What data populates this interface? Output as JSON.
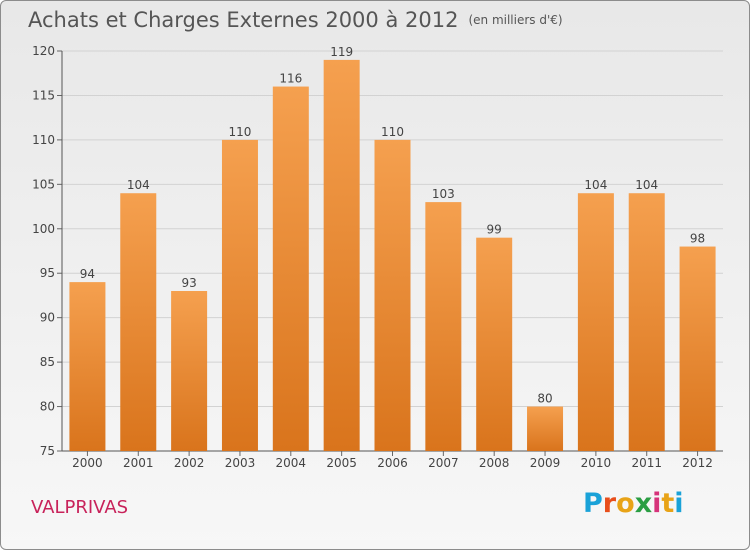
{
  "header": {
    "title": "Achats et Charges Externes 2000 à 2012",
    "unit": "(en milliers d'€)"
  },
  "footer": {
    "town": "VALPRIVAS",
    "logo_letters": [
      "P",
      "r",
      "o",
      "x",
      "i",
      "t",
      "i"
    ],
    "logo_colors": [
      "#1aa2d8",
      "#e84e1b",
      "#e8a317",
      "#2a9e43",
      "#d6337a",
      "#e8a317",
      "#1aa2d8"
    ]
  },
  "chart_data": {
    "type": "bar",
    "categories": [
      "2000",
      "2001",
      "2002",
      "2003",
      "2004",
      "2005",
      "2006",
      "2007",
      "2008",
      "2009",
      "2010",
      "2011",
      "2012"
    ],
    "values": [
      94,
      104,
      93,
      110,
      116,
      119,
      110,
      103,
      99,
      80,
      104,
      104,
      98
    ],
    "ylim": [
      75,
      120
    ],
    "yticks": [
      75,
      80,
      85,
      90,
      95,
      100,
      105,
      110,
      115,
      120
    ],
    "grid": true,
    "bar_color_top": "#f5a04f",
    "bar_color_bottom": "#d9741c"
  }
}
